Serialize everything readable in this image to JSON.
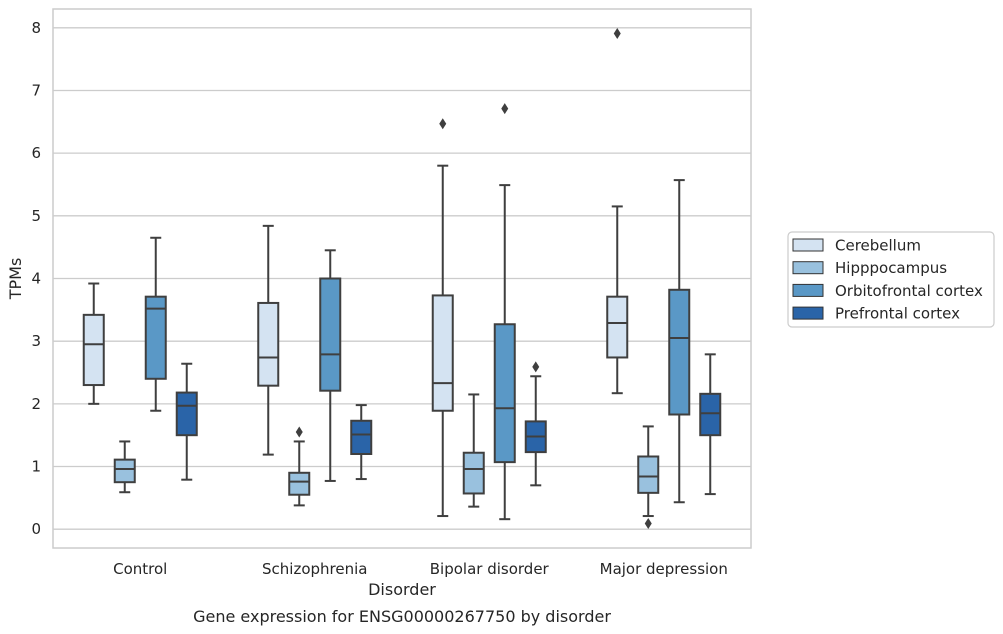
{
  "chart_data": {
    "type": "box",
    "caption": "Gene expression for ENSG00000267750 by disorder",
    "xlabel": "Disorder",
    "ylabel": "TPMs",
    "ylim": [
      -0.3,
      8.3
    ],
    "yticks": [
      0,
      1,
      2,
      3,
      4,
      5,
      6,
      7,
      8
    ],
    "grid": true,
    "legend_position": "right",
    "categories": [
      "Control",
      "Schizophrenia",
      "Bipolar disorder",
      "Major depression"
    ],
    "series": [
      {
        "name": "Cerebellum",
        "color": "#d4e3f2",
        "boxes": [
          {
            "whislo": 2.0,
            "q1": 2.3,
            "med": 2.95,
            "q3": 3.42,
            "whishi": 3.92,
            "fliers": []
          },
          {
            "whislo": 1.19,
            "q1": 2.29,
            "med": 2.74,
            "q3": 3.61,
            "whishi": 4.84,
            "fliers": []
          },
          {
            "whislo": 0.21,
            "q1": 1.89,
            "med": 2.33,
            "q3": 3.73,
            "whishi": 5.8,
            "fliers": [
              6.47
            ]
          },
          {
            "whislo": 2.17,
            "q1": 2.74,
            "med": 3.29,
            "q3": 3.71,
            "whishi": 5.15,
            "fliers": [
              7.91
            ]
          }
        ]
      },
      {
        "name": "Hipppocampus",
        "color": "#99c1de",
        "boxes": [
          {
            "whislo": 0.59,
            "q1": 0.75,
            "med": 0.96,
            "q3": 1.11,
            "whishi": 1.4,
            "fliers": []
          },
          {
            "whislo": 0.38,
            "q1": 0.55,
            "med": 0.76,
            "q3": 0.9,
            "whishi": 1.4,
            "fliers": [
              1.55
            ]
          },
          {
            "whislo": 0.36,
            "q1": 0.57,
            "med": 0.96,
            "q3": 1.22,
            "whishi": 2.15,
            "fliers": []
          },
          {
            "whislo": 0.21,
            "q1": 0.58,
            "med": 0.84,
            "q3": 1.16,
            "whishi": 1.64,
            "fliers": [
              0.09
            ]
          }
        ]
      },
      {
        "name": "Orbitofrontal cortex",
        "color": "#5a98c6",
        "boxes": [
          {
            "whislo": 1.89,
            "q1": 2.4,
            "med": 3.52,
            "q3": 3.71,
            "whishi": 4.65,
            "fliers": []
          },
          {
            "whislo": 0.77,
            "q1": 2.21,
            "med": 2.79,
            "q3": 4.0,
            "whishi": 4.45,
            "fliers": []
          },
          {
            "whislo": 0.16,
            "q1": 1.07,
            "med": 1.93,
            "q3": 3.27,
            "whishi": 5.49,
            "fliers": [
              6.71
            ]
          },
          {
            "whislo": 0.43,
            "q1": 1.83,
            "med": 3.05,
            "q3": 3.82,
            "whishi": 5.57,
            "fliers": []
          }
        ]
      },
      {
        "name": "Prefrontal cortex",
        "color": "#2a64a8",
        "boxes": [
          {
            "whislo": 0.79,
            "q1": 1.5,
            "med": 1.97,
            "q3": 2.18,
            "whishi": 2.64,
            "fliers": []
          },
          {
            "whislo": 0.8,
            "q1": 1.2,
            "med": 1.51,
            "q3": 1.73,
            "whishi": 1.98,
            "fliers": []
          },
          {
            "whislo": 0.7,
            "q1": 1.23,
            "med": 1.48,
            "q3": 1.72,
            "whishi": 2.44,
            "fliers": [
              2.59
            ]
          },
          {
            "whislo": 0.56,
            "q1": 1.5,
            "med": 1.85,
            "q3": 2.16,
            "whishi": 2.79,
            "fliers": []
          }
        ]
      }
    ]
  }
}
